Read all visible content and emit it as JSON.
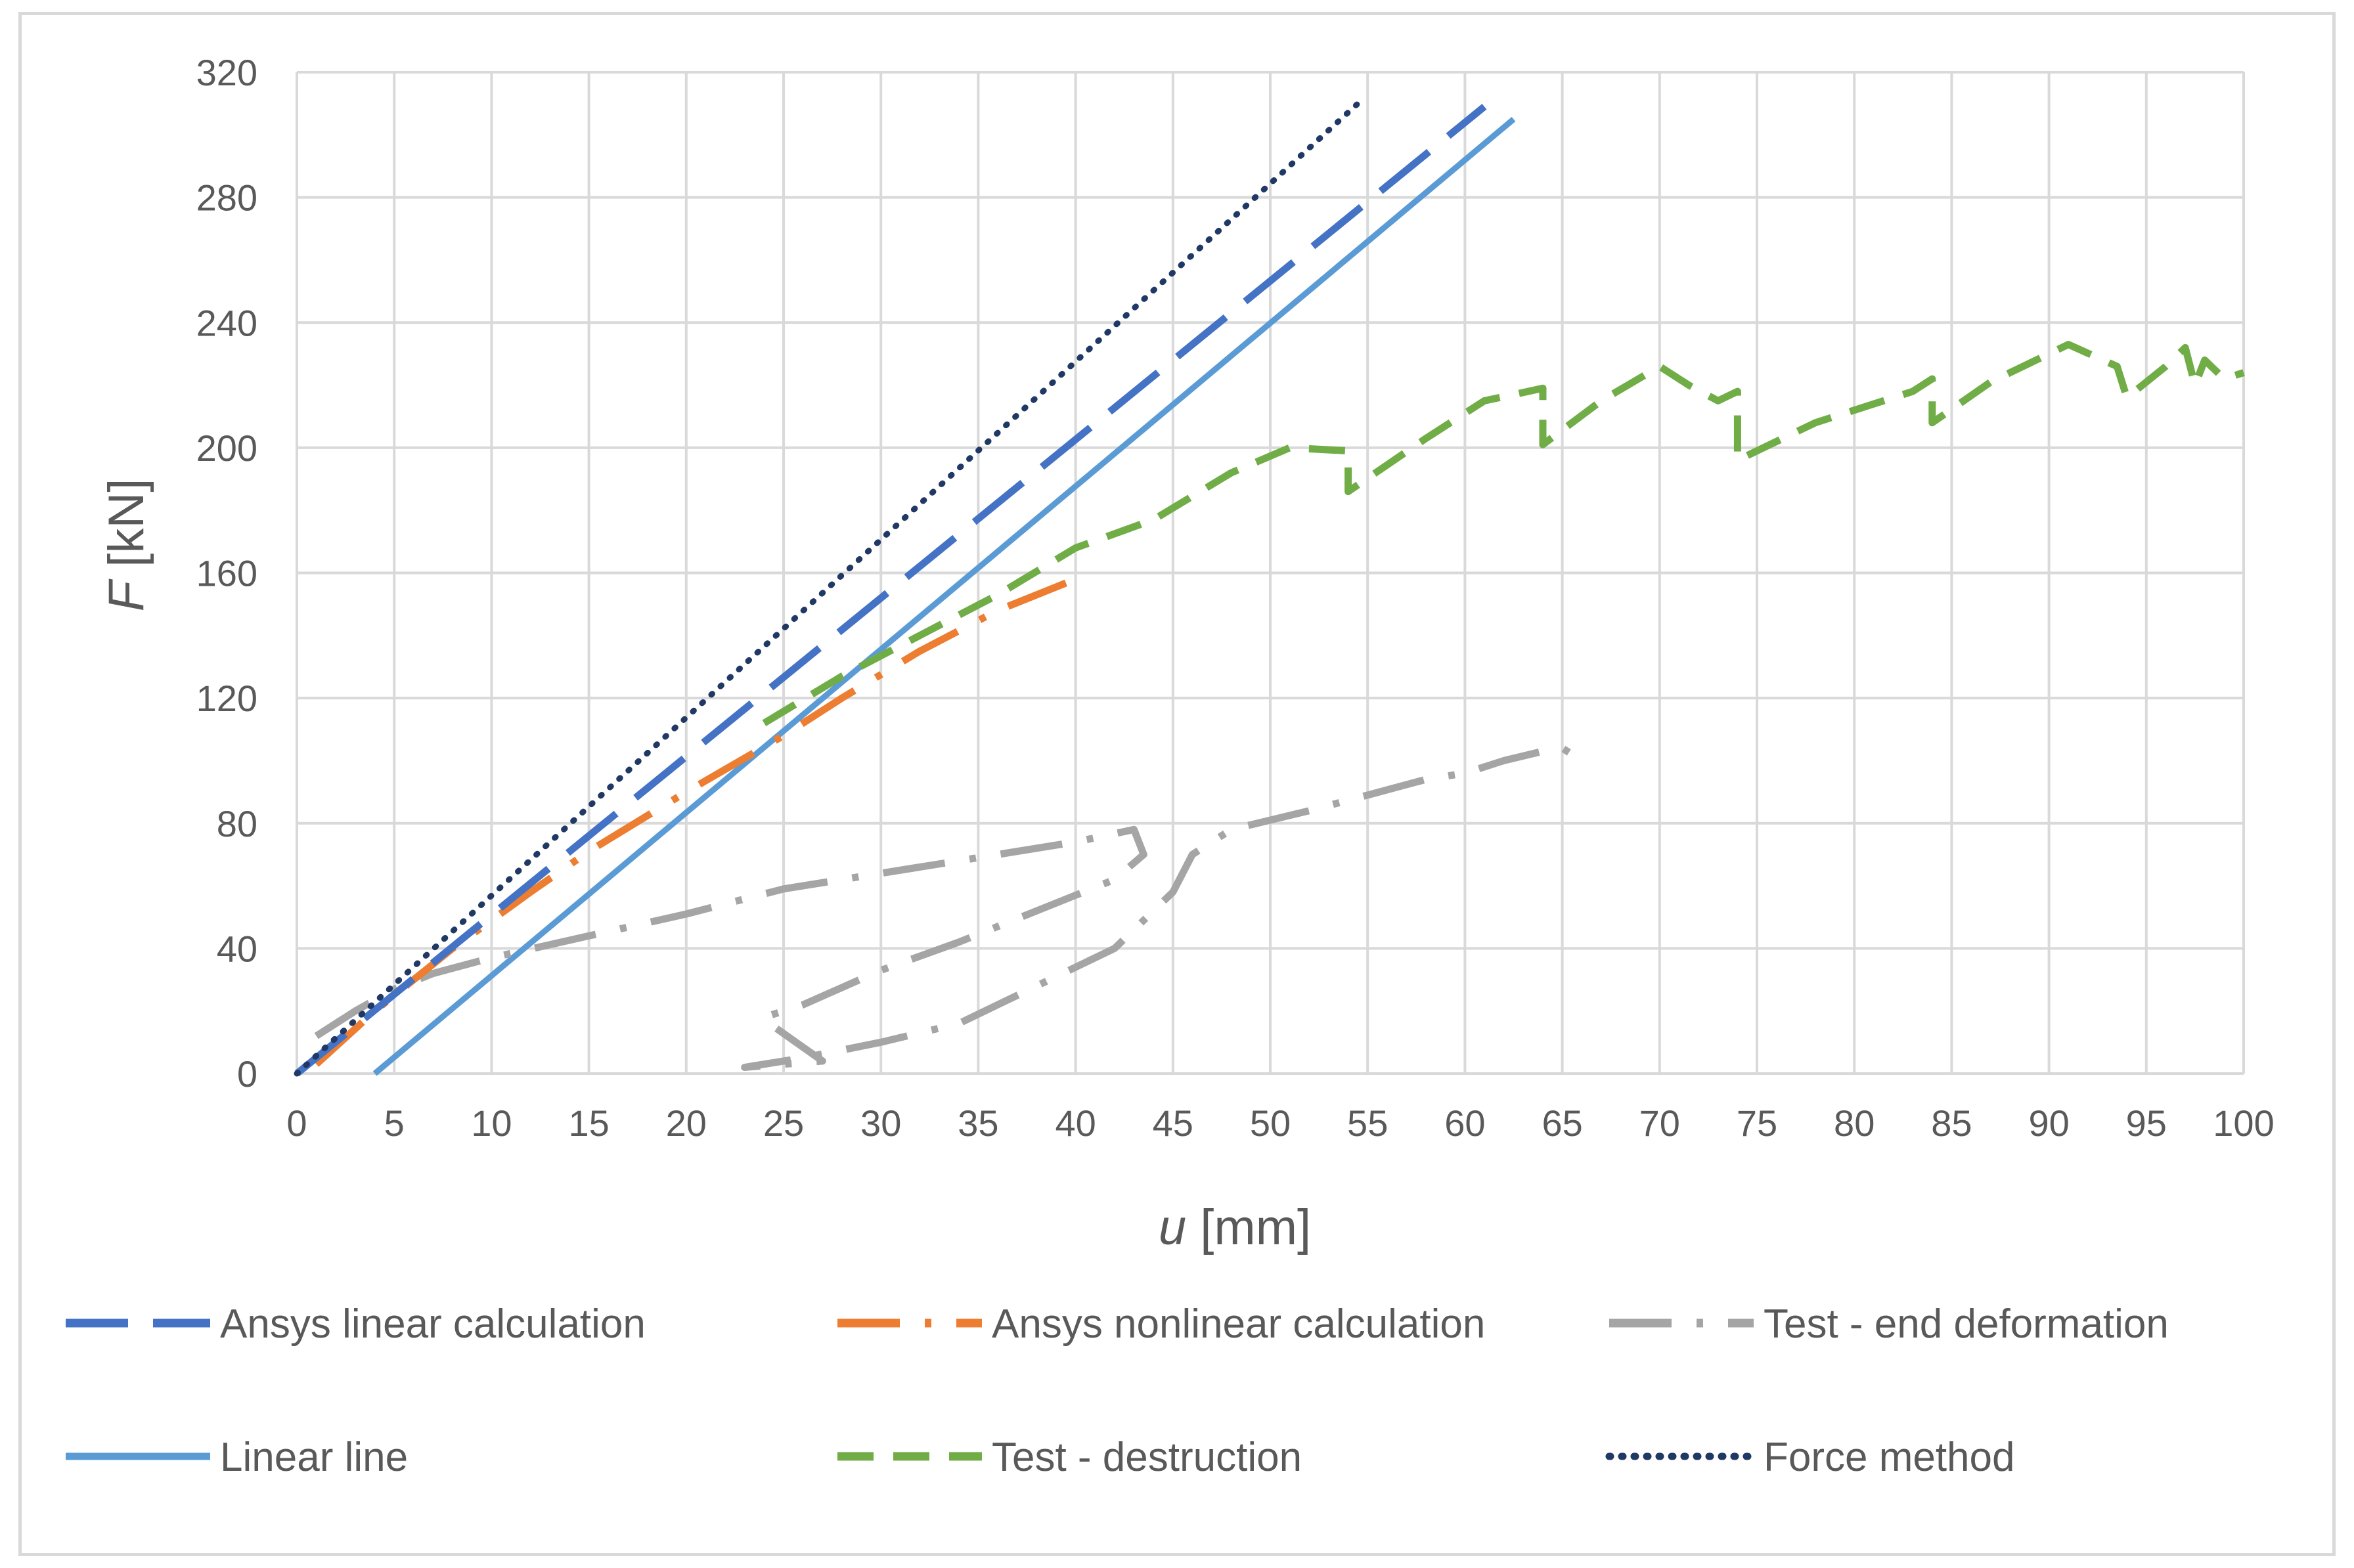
{
  "chart_data": {
    "type": "line",
    "title": "",
    "xlabel_var": "u",
    "xlabel_unit": " [mm]",
    "ylabel_var": "F",
    "ylabel_unit": " [kN]",
    "xlim": [
      0,
      100
    ],
    "ylim": [
      0,
      320
    ],
    "xticks": [
      "0",
      "5",
      "10",
      "15",
      "20",
      "25",
      "30",
      "35",
      "40",
      "45",
      "50",
      "55",
      "60",
      "65",
      "70",
      "75",
      "80",
      "85",
      "90",
      "95",
      "100"
    ],
    "yticks": [
      "0",
      "40",
      "80",
      "120",
      "160",
      "200",
      "240",
      "280",
      "320"
    ],
    "grid": true,
    "legend_position": "bottom",
    "series": [
      {
        "name": "Ansys linear calculation",
        "color": "#4472c4",
        "style": "long-dash",
        "points": [
          [
            0,
            0
          ],
          [
            61,
            309
          ]
        ]
      },
      {
        "name": "Ansys nonlinear calculation",
        "color": "#ed7d31",
        "style": "long-dash-dot",
        "points": [
          [
            1,
            3
          ],
          [
            4,
            20
          ],
          [
            8,
            40
          ],
          [
            12,
            58
          ],
          [
            15,
            71
          ],
          [
            20,
            90
          ],
          [
            25,
            108
          ],
          [
            28,
            120
          ],
          [
            32,
            135
          ],
          [
            36,
            148
          ],
          [
            40,
            158
          ]
        ]
      },
      {
        "name": "Test - end deformation",
        "color": "#a5a5a5",
        "style": "long-dash-dot",
        "points": [
          [
            1,
            12
          ],
          [
            3,
            20
          ],
          [
            5,
            27
          ],
          [
            7,
            32
          ],
          [
            10,
            37
          ],
          [
            15,
            44
          ],
          [
            20,
            51
          ],
          [
            25,
            59
          ],
          [
            30,
            64
          ],
          [
            35,
            69
          ],
          [
            40,
            74
          ],
          [
            43,
            78
          ],
          [
            43.5,
            70
          ],
          [
            42,
            62
          ],
          [
            38,
            52
          ],
          [
            34,
            42
          ],
          [
            30,
            33
          ],
          [
            26,
            22
          ],
          [
            24,
            18
          ],
          [
            24.5,
            15
          ],
          [
            27,
            4
          ],
          [
            23,
            2
          ],
          [
            26,
            5
          ],
          [
            30,
            10
          ],
          [
            34,
            16
          ],
          [
            38,
            28
          ],
          [
            42,
            40
          ],
          [
            45,
            58
          ],
          [
            46,
            70
          ],
          [
            48,
            78
          ],
          [
            52,
            84
          ],
          [
            55,
            89
          ],
          [
            58,
            94
          ],
          [
            60,
            96
          ],
          [
            62,
            100
          ],
          [
            64,
            103
          ],
          [
            65,
            104
          ],
          [
            66,
            100
          ]
        ]
      },
      {
        "name": "Linear line",
        "color": "#5b9bd5",
        "style": "solid",
        "points": [
          [
            4,
            0
          ],
          [
            62.5,
            305
          ]
        ]
      },
      {
        "name": "Test - destruction",
        "color": "#70ad47",
        "style": "dash",
        "points": [
          [
            24,
            112
          ],
          [
            28,
            127
          ],
          [
            32,
            140
          ],
          [
            36,
            153
          ],
          [
            40,
            168
          ],
          [
            44,
            177
          ],
          [
            48,
            192
          ],
          [
            51,
            200
          ],
          [
            54,
            199
          ],
          [
            54,
            186
          ],
          [
            58,
            203
          ],
          [
            61,
            215
          ],
          [
            64,
            219
          ],
          [
            64,
            201
          ],
          [
            67,
            215
          ],
          [
            70,
            226
          ],
          [
            71.5,
            220
          ],
          [
            73,
            215
          ],
          [
            74,
            218
          ],
          [
            74,
            196
          ],
          [
            78,
            208
          ],
          [
            83,
            218
          ],
          [
            84,
            222
          ],
          [
            84,
            208
          ],
          [
            87,
            221
          ],
          [
            90,
            230
          ],
          [
            91,
            233
          ],
          [
            93.5,
            226
          ],
          [
            94,
            216
          ],
          [
            96,
            226
          ],
          [
            97,
            232
          ],
          [
            97.5,
            220
          ],
          [
            98,
            228
          ],
          [
            99,
            222
          ],
          [
            100,
            224
          ]
        ]
      },
      {
        "name": "Force method",
        "color": "#203864",
        "style": "dot",
        "points": [
          [
            0,
            0
          ],
          [
            54.5,
            310
          ]
        ]
      }
    ]
  }
}
